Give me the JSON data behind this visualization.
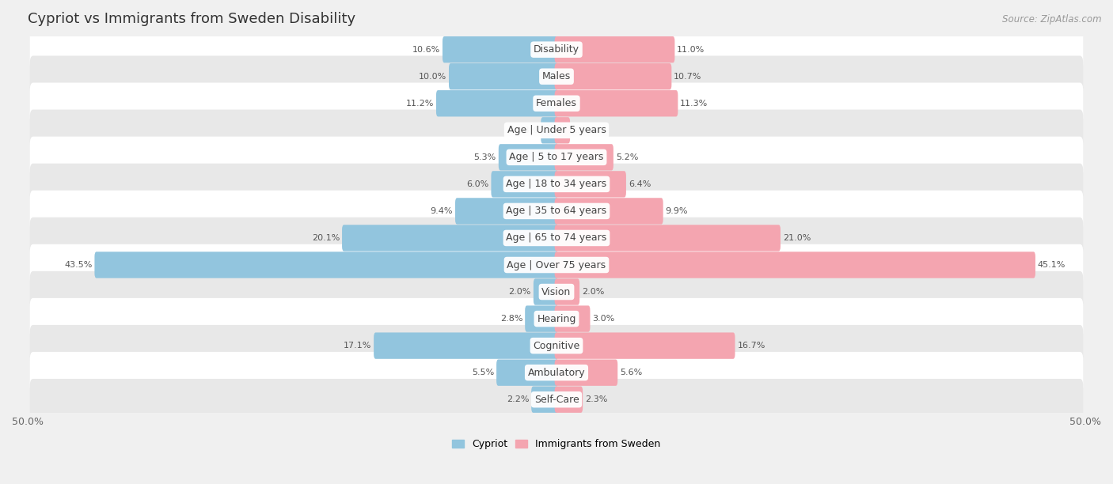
{
  "title": "Cypriot vs Immigrants from Sweden Disability",
  "source": "Source: ZipAtlas.com",
  "categories": [
    "Disability",
    "Males",
    "Females",
    "Age | Under 5 years",
    "Age | 5 to 17 years",
    "Age | 18 to 34 years",
    "Age | 35 to 64 years",
    "Age | 65 to 74 years",
    "Age | Over 75 years",
    "Vision",
    "Hearing",
    "Cognitive",
    "Ambulatory",
    "Self-Care"
  ],
  "cypriot": [
    10.6,
    10.0,
    11.2,
    1.3,
    5.3,
    6.0,
    9.4,
    20.1,
    43.5,
    2.0,
    2.8,
    17.1,
    5.5,
    2.2
  ],
  "immigrants": [
    11.0,
    10.7,
    11.3,
    1.1,
    5.2,
    6.4,
    9.9,
    21.0,
    45.1,
    2.0,
    3.0,
    16.7,
    5.6,
    2.3
  ],
  "cypriot_color": "#92C5DE",
  "immigrant_color": "#F4A5B0",
  "xlim": 50.0,
  "background_color": "#f0f0f0",
  "row_color_light": "#ffffff",
  "row_color_dark": "#e8e8e8",
  "label_fontsize": 9,
  "title_fontsize": 13,
  "legend_fontsize": 9,
  "value_fontsize": 8
}
